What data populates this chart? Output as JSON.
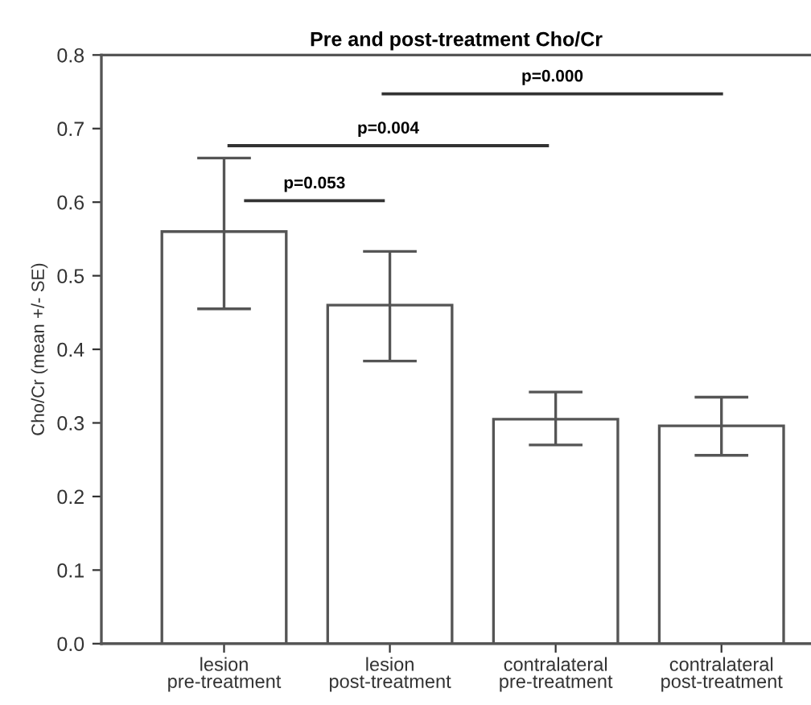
{
  "chart_data": {
    "type": "bar",
    "title": "Pre and post-treatment Cho/Cr",
    "ylabel": "Cho/Cr (mean +/- SE)",
    "categories": [
      "lesion\npre-treatment",
      "lesion\npost-treatment",
      "contralateral\npre-treatment",
      "contralateral\npost-treatment"
    ],
    "values": [
      0.56,
      0.46,
      0.305,
      0.296
    ],
    "errors": [
      [
        0.455,
        0.66
      ],
      [
        0.384,
        0.533
      ],
      [
        0.27,
        0.342
      ],
      [
        0.256,
        0.335
      ]
    ],
    "color": "#ffffff",
    "ylim": [
      0,
      0.8
    ],
    "yticks": [
      {
        "value": 0,
        "label": "0.0"
      },
      0.1,
      0.2,
      0.3,
      0.4,
      0.5,
      0.6,
      0.7,
      0.8
    ],
    "grid": false,
    "legend": false,
    "annotations": [
      "p=0.053",
      "p=0.004",
      "p=0.000"
    ]
  }
}
